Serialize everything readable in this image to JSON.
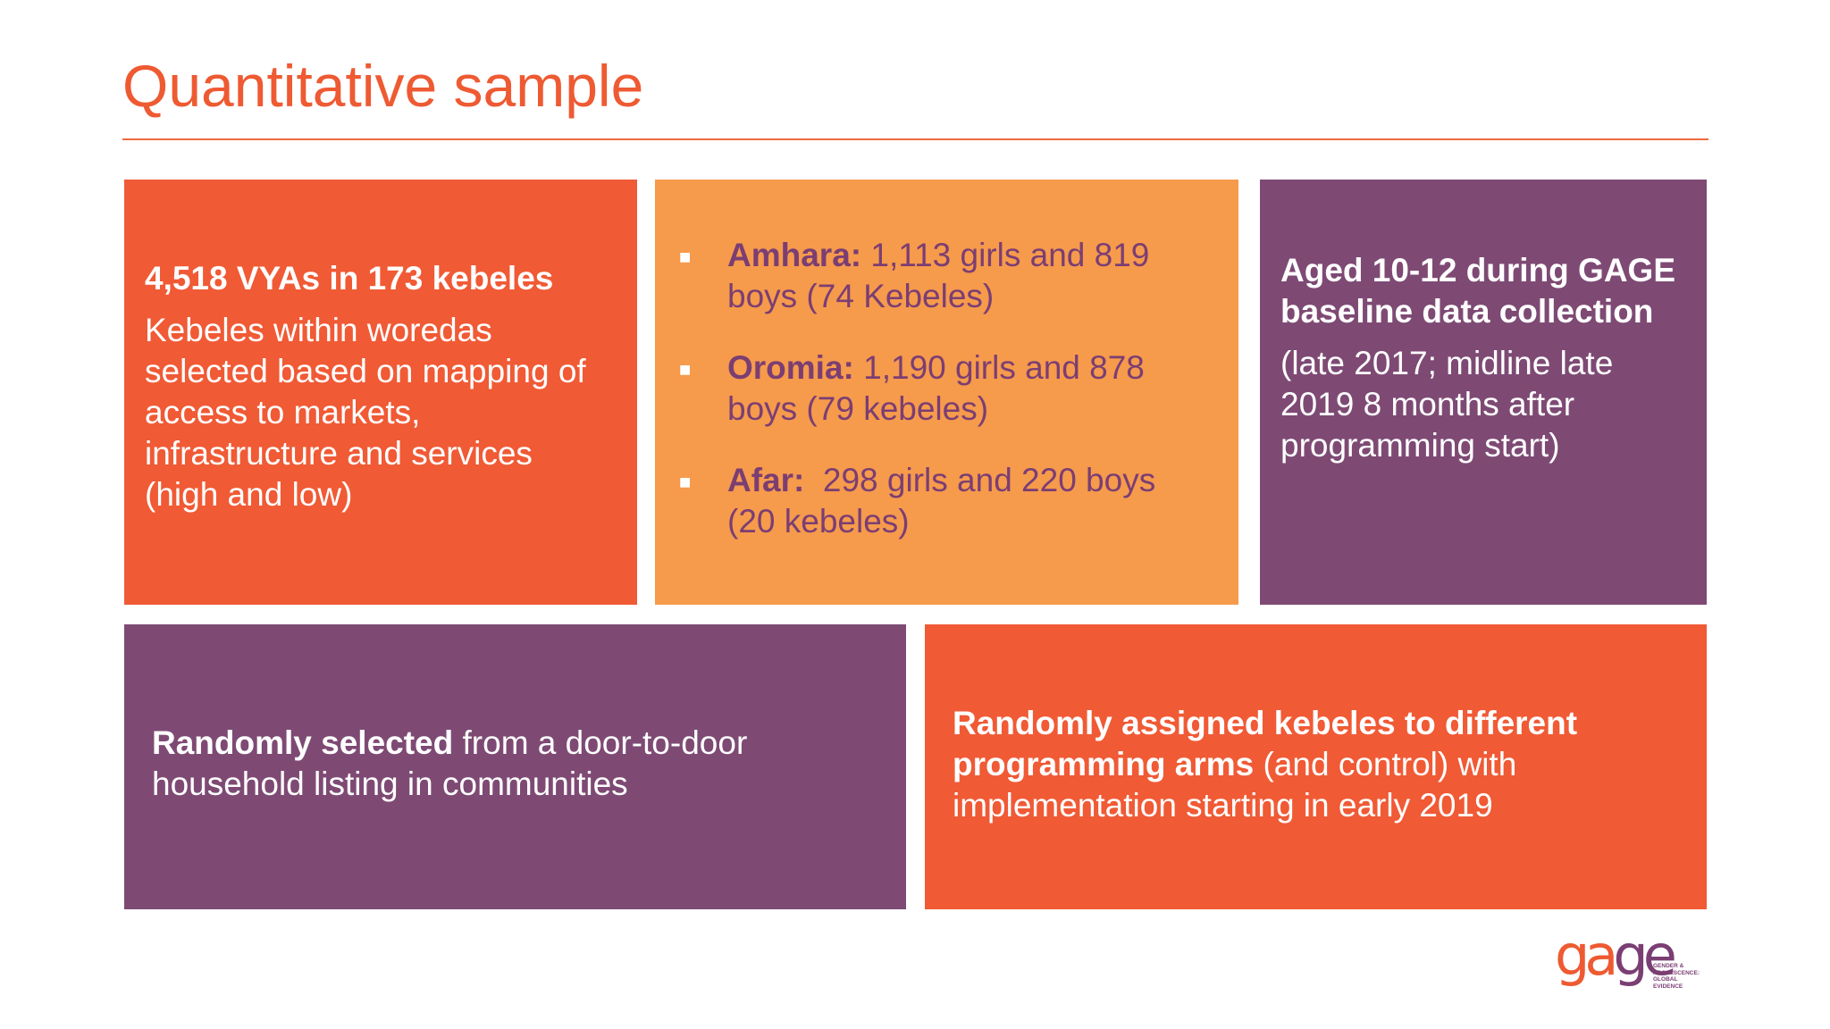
{
  "slide": {
    "title": "Quantitative sample",
    "box1": {
      "heading": "4,518 VYAs in 173 kebeles",
      "body": "Kebeles within woredas selected based on mapping of access to markets, infrastructure and services (high and low)"
    },
    "box2": {
      "bullets": [
        {
          "region": "Amhara:",
          "text": " 1,113 girls and 819 boys (74 Kebeles)"
        },
        {
          "region": "Oromia:",
          "text": " 1,190 girls and 878 boys (79 kebeles)"
        },
        {
          "region": "Afar:",
          "text": "  298 girls and 220 boys (20 kebeles)"
        }
      ]
    },
    "box3": {
      "heading": "Aged 10-12 during GAGE baseline data collection",
      "body": "(late 2017; midline late 2019 8 months after programming start)"
    },
    "box4": {
      "bold": "Randomly selected",
      "text": " from a door-to-door household listing in communities"
    },
    "box5": {
      "bold": "Randomly assigned kebeles to different programming arms",
      "text": " (and control) with implementation starting in early 2019"
    },
    "logo": {
      "word_a": "ga",
      "word_b": "ge",
      "tagline": [
        "GENDER &",
        "ADOLESCENCE:",
        "GLOBAL",
        "EVIDENCE"
      ]
    },
    "colors": {
      "orange": "#f05a35",
      "light_orange": "#f69a4c",
      "purple": "#7e4a74"
    }
  }
}
